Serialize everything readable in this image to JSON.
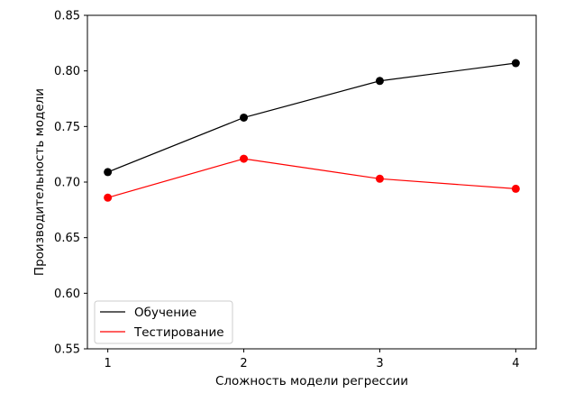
{
  "chart_data": {
    "type": "line",
    "title": "",
    "xlabel": "Сложность модели регрессии",
    "ylabel": "Производительность модели",
    "x": [
      1,
      2,
      3,
      4
    ],
    "xticks": [
      "1",
      "2",
      "3",
      "4"
    ],
    "xlim": [
      0.85,
      4.15
    ],
    "ylim": [
      0.55,
      0.85
    ],
    "yticks": [
      "0.55",
      "0.60",
      "0.65",
      "0.70",
      "0.75",
      "0.80",
      "0.85"
    ],
    "grid": false,
    "legend_position": "lower-left",
    "series": [
      {
        "name": "Обучение",
        "color": "#000000",
        "values": [
          0.709,
          0.758,
          0.791,
          0.807
        ]
      },
      {
        "name": "Тестирование",
        "color": "#ff0000",
        "values": [
          0.686,
          0.721,
          0.703,
          0.694
        ]
      }
    ]
  }
}
